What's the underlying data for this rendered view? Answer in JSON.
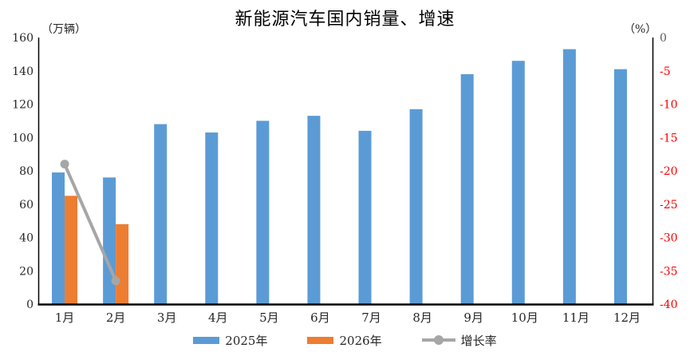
{
  "chart_data": {
    "type": "bar+line combo",
    "title": "新能源汽车国内销量、增速",
    "categories": [
      "1月",
      "2月",
      "3月",
      "4月",
      "5月",
      "6月",
      "7月",
      "8月",
      "9月",
      "10月",
      "11月",
      "12月"
    ],
    "series": [
      {
        "name": "2025年",
        "type": "bar",
        "axis": "left",
        "color": "#5B9BD5",
        "values": [
          79,
          76,
          108,
          103,
          110,
          113,
          104,
          117,
          138,
          146,
          153,
          141
        ]
      },
      {
        "name": "2026年",
        "type": "bar",
        "axis": "left",
        "color": "#ED7D31",
        "values": [
          65,
          48,
          null,
          null,
          null,
          null,
          null,
          null,
          null,
          null,
          null,
          null
        ]
      },
      {
        "name": "增长率",
        "type": "line",
        "axis": "right",
        "color": "#A6A6A6",
        "values": [
          -19,
          -36.5,
          null,
          null,
          null,
          null,
          null,
          null,
          null,
          null,
          null,
          null
        ]
      }
    ],
    "left_axis": {
      "unit": "（万辆）",
      "min": 0,
      "max": 160,
      "step": 20,
      "tick_labels": [
        "0",
        "20",
        "40",
        "60",
        "80",
        "100",
        "120",
        "140",
        "160"
      ],
      "label_color": "#262626"
    },
    "right_axis": {
      "unit": "（%）",
      "min": -40,
      "max": 0,
      "step": 5,
      "tick_labels": [
        "0",
        "-5",
        "-10",
        "-15",
        "-20",
        "-25",
        "-30",
        "-35",
        "-40"
      ],
      "zero_color": "#595959",
      "negative_color": "#FF0000"
    },
    "legend": {
      "position": "bottom",
      "entries": [
        "2025年",
        "2026年",
        "增长率"
      ]
    },
    "grid": false,
    "axis_line_color": "#000000",
    "x_label_color": "#262626"
  }
}
